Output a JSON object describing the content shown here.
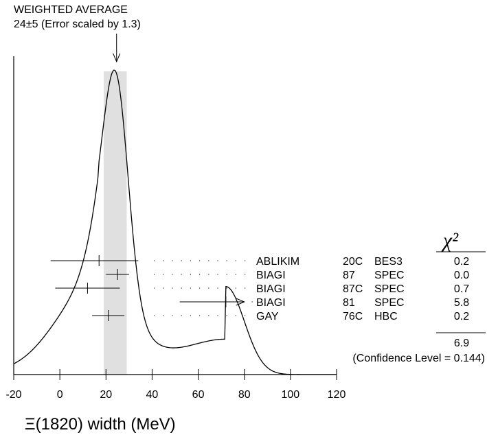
{
  "chart_data": {
    "type": "ideogram",
    "weighted_average": {
      "label": "WEIGHTED AVERAGE",
      "value_text": "24±5 (Error scaled by 1.3)",
      "value": 24,
      "error": 5,
      "scale_factor": 1.3
    },
    "x_axis": {
      "label": "Ξ(1820) width (MeV)",
      "range": [
        -20,
        120
      ],
      "ticks": [
        -20,
        0,
        20,
        40,
        60,
        80,
        100,
        120
      ]
    },
    "chi2_header": "χ²",
    "measurements": [
      {
        "author": "ABLIKIM",
        "year": "20C",
        "tech": "BES3",
        "chi2": "0.2",
        "value": 17,
        "minus": 21,
        "plus": 17,
        "arrow": false
      },
      {
        "author": "BIAGI",
        "year": "87",
        "tech": "SPEC",
        "chi2": "0.0",
        "value": 25,
        "minus": 5,
        "plus": 5,
        "arrow": false
      },
      {
        "author": "BIAGI",
        "year": "87C",
        "tech": "SPEC",
        "chi2": "0.7",
        "value": 12,
        "minus": 14,
        "plus": 14,
        "arrow": false
      },
      {
        "author": "BIAGI",
        "year": "81",
        "tech": "SPEC",
        "chi2": "5.8",
        "value": 72,
        "minus": 20,
        "plus": 8,
        "arrow": true
      },
      {
        "author": "GAY",
        "year": "76C",
        "tech": "HBC",
        "chi2": "0.2",
        "value": 21,
        "minus": 7,
        "plus": 7,
        "arrow": false
      }
    ],
    "chi2_total": "6.9",
    "confidence_level_text": "(Confidence Level = 0.144)"
  }
}
